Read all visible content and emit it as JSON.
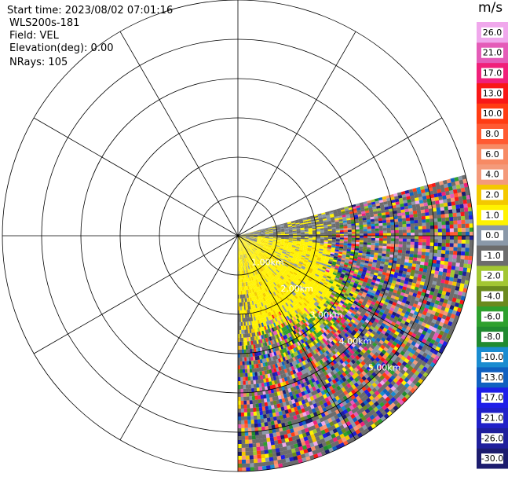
{
  "header": {
    "start_time": "Start time: 2023/08/02 07:01:16",
    "instrument": "WLS200s-181",
    "field": "Field: VEL",
    "elevation": "Elevation(deg): 0.00",
    "nrays": "NRays: 105"
  },
  "colorbar": {
    "unit": "m/s",
    "colors": [
      "#1c1c6e",
      "#1f1f9c",
      "#2020c8",
      "#1e1ee8",
      "#1060c0",
      "#1a8cd0",
      "#208a30",
      "#2ea02e",
      "#6a8a1e",
      "#a2c632",
      "#6c6c6c",
      "#8a98a8",
      "#fff200",
      "#f3c800",
      "#f49a7a",
      "#f78a64",
      "#ff5a32",
      "#ff3c14",
      "#f81818",
      "#f0207a",
      "#e45cb8",
      "#f0a8ec"
    ],
    "tick_labels": [
      "-30.0",
      "-26.0",
      "-21.0",
      "-17.0",
      "-13.0",
      "-10.0",
      "-8.0",
      "-6.0",
      "-4.0",
      "-2.0",
      "-1.0",
      "0.0",
      "1.0",
      "2.0",
      "4.0",
      "6.0",
      "8.0",
      "10.0",
      "13.0",
      "17.0",
      "21.0",
      "26.0"
    ]
  },
  "chart_data": {
    "type": "ppi",
    "field": "VEL",
    "units": "m/s",
    "rings_km": [
      1,
      2,
      3,
      4,
      5,
      6
    ],
    "ring_labels": [
      "1.00km",
      "2.00km",
      "3.00km",
      "4.00km",
      "5.00km"
    ],
    "azimuth_spokes_deg": [
      0,
      30,
      60,
      90,
      120,
      150,
      180,
      210,
      240,
      270,
      300,
      330
    ],
    "sector_azimuth_deg": [
      75,
      180
    ],
    "max_range_km": 6.0,
    "nrays": 105,
    "regions": [
      {
        "range_km": [
          0,
          2.6
        ],
        "velocity_ms": 1.5,
        "color": "yellow"
      },
      {
        "range_km": [
          2.6,
          6.0
        ],
        "velocity_ms": "mixed (noise)",
        "color": "multicolor"
      }
    ]
  }
}
